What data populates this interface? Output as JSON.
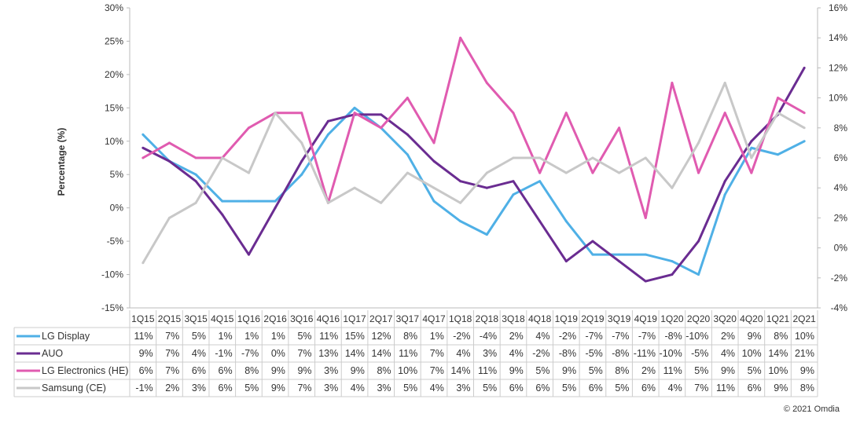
{
  "chart_data": {
    "type": "line",
    "ylabel": "Percentage (%)",
    "ylim": [
      -15,
      30
    ],
    "y2lim": [
      -4,
      16
    ],
    "yticks": [
      "30%",
      "25%",
      "20%",
      "15%",
      "10%",
      "5%",
      "0%",
      "-5%",
      "-10%",
      "-15%"
    ],
    "y2ticks": [
      "16%",
      "14%",
      "12%",
      "10%",
      "8%",
      "6%",
      "4%",
      "2%",
      "0%",
      "-2%",
      "-4%"
    ],
    "grid": false,
    "legend": "data table below chart",
    "categories": [
      "1Q15",
      "2Q15",
      "3Q15",
      "4Q15",
      "1Q16",
      "2Q16",
      "3Q16",
      "4Q16",
      "1Q17",
      "2Q17",
      "3Q17",
      "4Q17",
      "1Q18",
      "2Q18",
      "3Q18",
      "4Q18",
      "1Q19",
      "2Q19",
      "3Q19",
      "4Q19",
      "1Q20",
      "2Q20",
      "3Q20",
      "4Q20",
      "1Q21",
      "2Q21"
    ],
    "series": [
      {
        "name": "LG Display",
        "color": "#4fb0e6",
        "axis": "left",
        "values": [
          11,
          7,
          5,
          1,
          1,
          1,
          5,
          11,
          15,
          12,
          8,
          1,
          -2,
          -4,
          2,
          4,
          -2,
          -7,
          -7,
          -7,
          -8,
          -10,
          2,
          9,
          8,
          10
        ]
      },
      {
        "name": "AUO",
        "color": "#6a2c91",
        "axis": "left",
        "values": [
          9,
          7,
          4,
          -1,
          -7,
          0,
          7,
          13,
          14,
          14,
          11,
          7,
          4,
          3,
          4,
          -2,
          -8,
          -5,
          -8,
          -11,
          -10,
          -5,
          4,
          10,
          14,
          21
        ]
      },
      {
        "name": "LG Electronics (HE)",
        "color": "#e05bb0",
        "axis": "right",
        "values": [
          6,
          7,
          6,
          6,
          8,
          9,
          9,
          3,
          9,
          8,
          10,
          7,
          14,
          11,
          9,
          5,
          9,
          5,
          8,
          2,
          11,
          5,
          9,
          5,
          10,
          9
        ]
      },
      {
        "name": "Samsung (CE)",
        "color": "#c8c8c8",
        "axis": "right",
        "values": [
          -1,
          2,
          3,
          6,
          5,
          9,
          7,
          3,
          4,
          3,
          5,
          4,
          3,
          5,
          6,
          6,
          5,
          6,
          5,
          6,
          4,
          7,
          11,
          6,
          9,
          8
        ]
      }
    ]
  },
  "credit": "© 2021 Omdia"
}
